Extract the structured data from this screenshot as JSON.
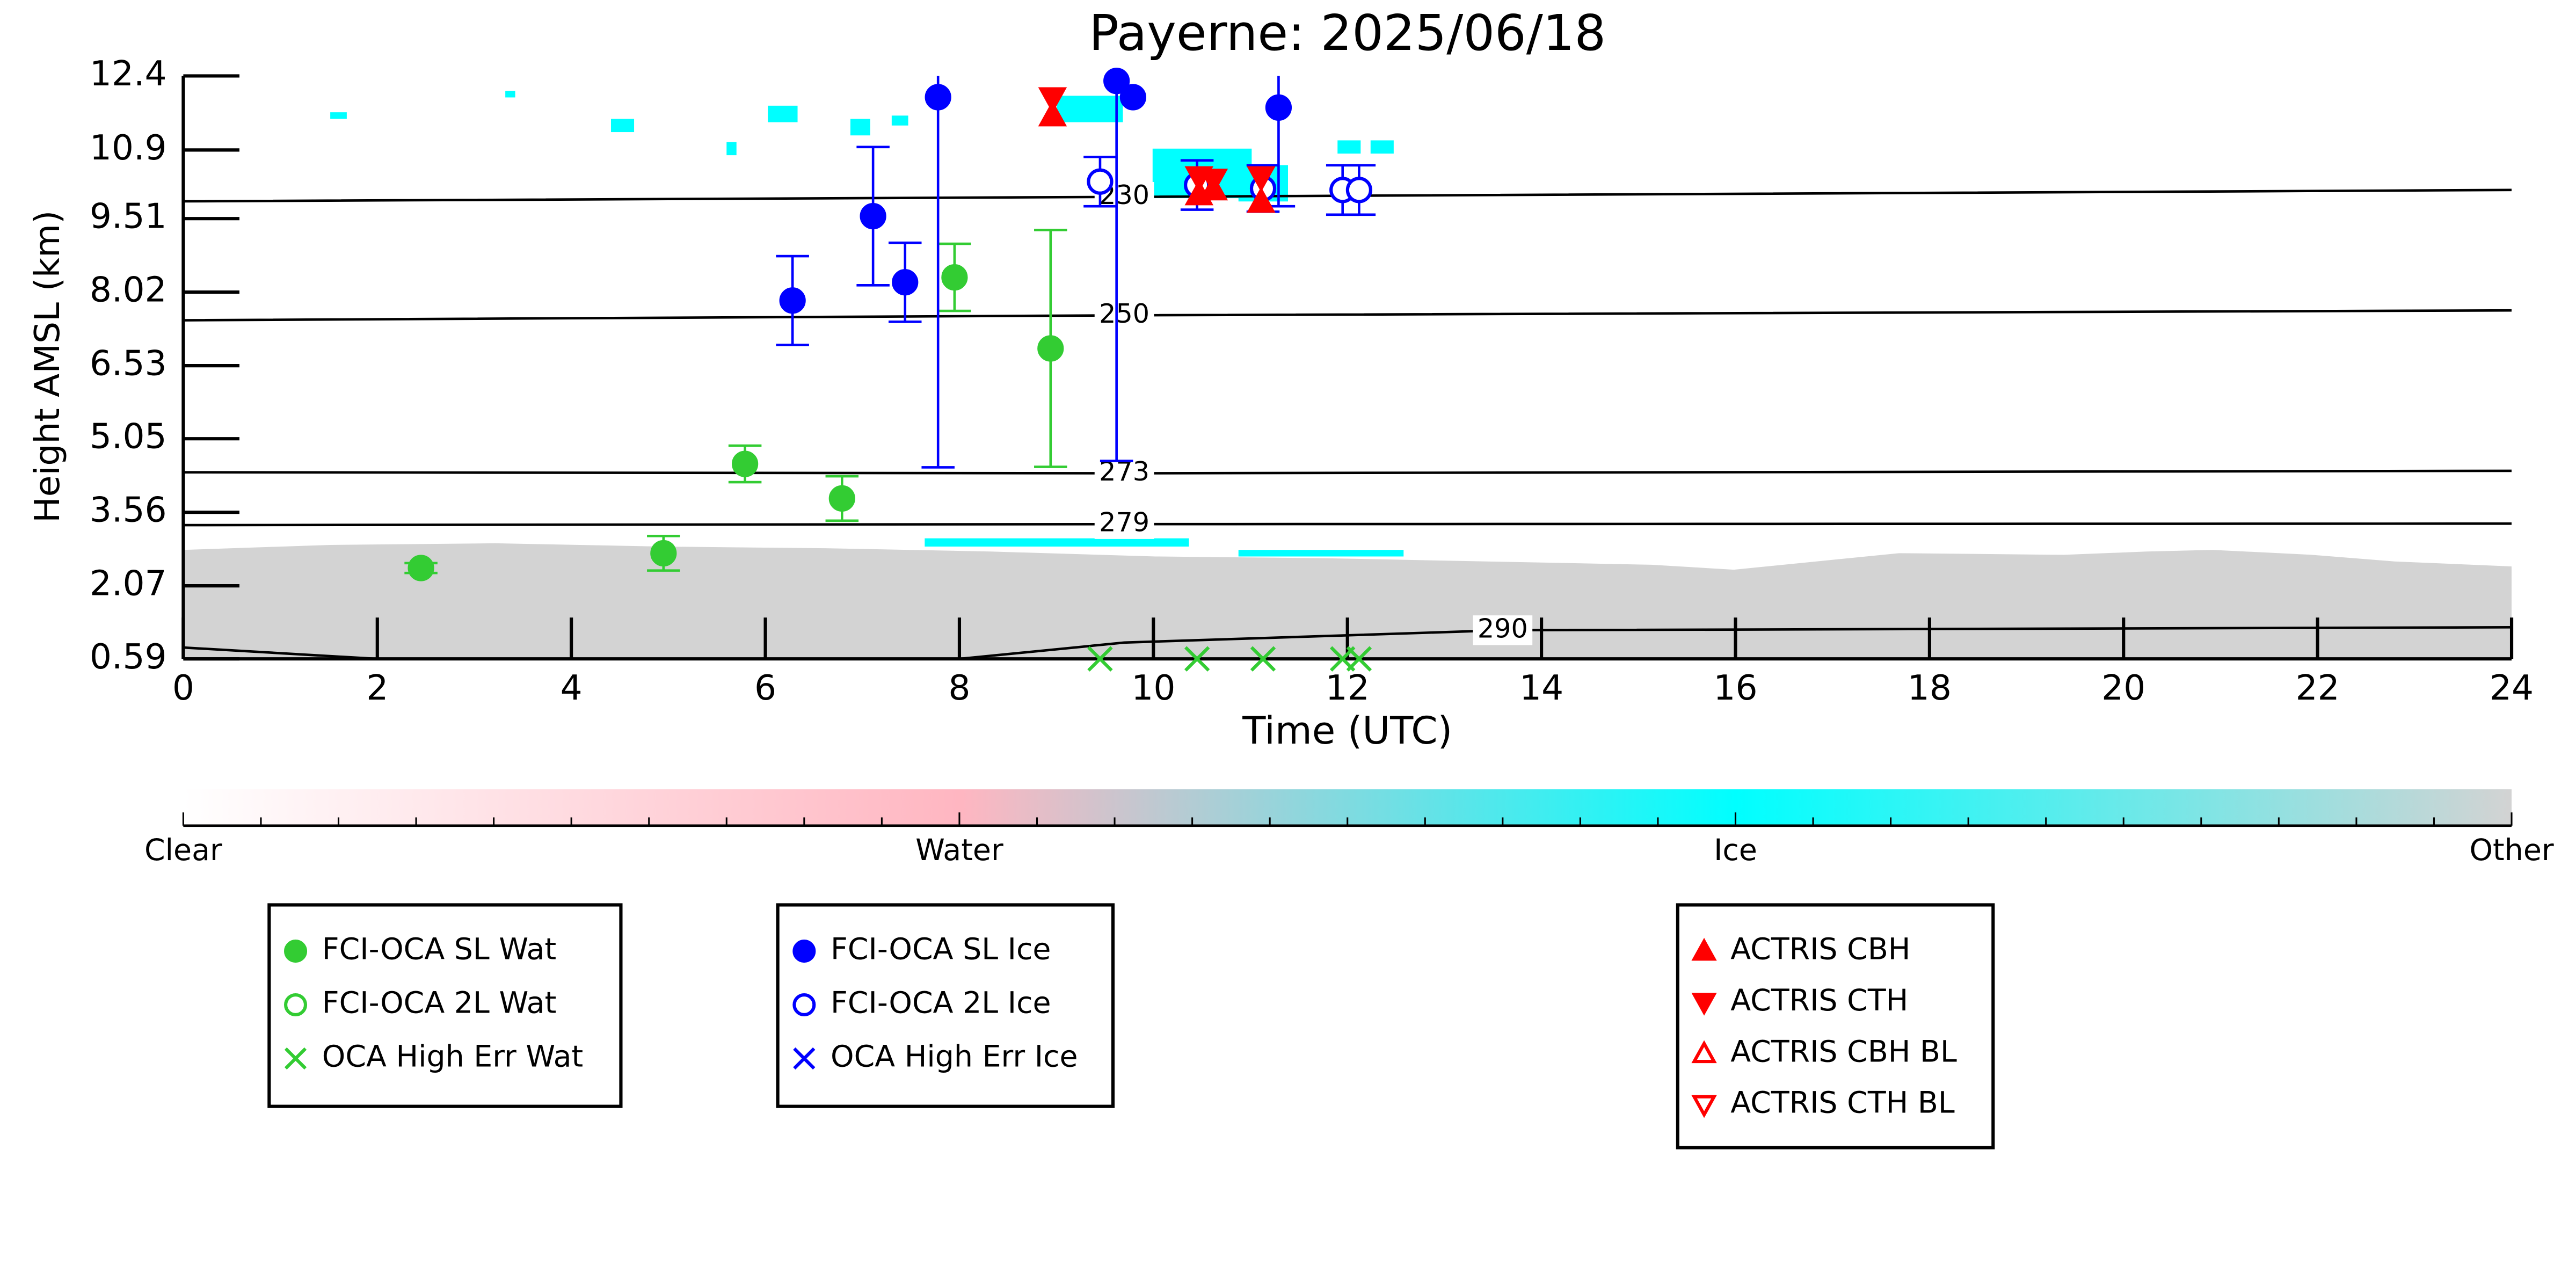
{
  "chart_data": {
    "type": "scatter",
    "title": "Payerne: 2025/06/18",
    "xlabel": "Time (UTC)",
    "ylabel": "Height AMSL (km)",
    "xlim": [
      0,
      24
    ],
    "xticks": [
      0,
      2,
      4,
      6,
      8,
      10,
      12,
      14,
      16,
      18,
      20,
      22,
      24
    ],
    "ylim": [
      0.59,
      12.4
    ],
    "yticks": [
      0.59,
      2.07,
      3.56,
      5.05,
      6.53,
      8.02,
      9.51,
      10.9,
      12.4
    ],
    "series": [
      {
        "name": "FCI-OCA SL Wat",
        "color": "#33cc33",
        "marker": "circle",
        "filled": true,
        "x": [
          2.45,
          4.95,
          5.79,
          6.79,
          7.95,
          8.94
        ],
        "values": [
          2.43,
          2.73,
          4.54,
          3.84,
          8.32,
          6.88
        ],
        "errors": [
          0.1,
          0.35,
          0.37,
          0.45,
          0.68,
          2.4
        ]
      },
      {
        "name": "FCI-OCA 2L Wat",
        "color": "#33cc33",
        "marker": "circle",
        "filled": false,
        "x": [],
        "values": []
      },
      {
        "name": "OCA High Err Wat",
        "color": "#33cc33",
        "marker": "x",
        "filled": true,
        "x": [
          9.45,
          10.45,
          11.13,
          11.95,
          12.12
        ],
        "values": [
          0.59,
          0.59,
          0.59,
          0.59,
          0.59
        ]
      },
      {
        "name": "FCI-OCA SL Ice",
        "color": "#0000ff",
        "marker": "circle",
        "filled": true,
        "x": [
          6.28,
          7.11,
          7.44,
          7.78,
          9.62,
          9.79,
          11.29
        ],
        "values": [
          7.85,
          9.56,
          8.22,
          11.97,
          12.3,
          11.97,
          11.76
        ],
        "errors": [
          0.9,
          1.4,
          0.8,
          7.5,
          7.7,
          null,
          2.0
        ]
      },
      {
        "name": "FCI-OCA 2L Ice",
        "color": "#0000ff",
        "marker": "circle",
        "filled": false,
        "x": [
          9.45,
          10.45,
          11.13,
          11.95,
          12.12
        ],
        "values": [
          10.26,
          10.19,
          10.12,
          10.09,
          10.09
        ],
        "errors": [
          0.5,
          0.5,
          0.47,
          0.5,
          0.5
        ]
      },
      {
        "name": "OCA High Err Ice",
        "color": "#0000ff",
        "marker": "x",
        "filled": true,
        "x": [],
        "values": []
      },
      {
        "name": "ACTRIS CBH",
        "color": "#ff0000",
        "marker": "triangle-up",
        "filled": true,
        "x": [
          8.96,
          10.47,
          10.62,
          11.11
        ],
        "values": [
          11.6,
          10.0,
          10.1,
          9.85
        ]
      },
      {
        "name": "ACTRIS CTH",
        "color": "#ff0000",
        "marker": "triangle-down",
        "filled": true,
        "x": [
          8.96,
          10.47,
          10.62,
          11.11
        ],
        "values": [
          11.95,
          10.35,
          10.3,
          10.35
        ]
      },
      {
        "name": "ACTRIS CBH BL",
        "color": "#ff0000",
        "marker": "triangle-up",
        "filled": false,
        "x": [],
        "values": []
      },
      {
        "name": "ACTRIS CTH BL",
        "color": "#ff0000",
        "marker": "triangle-down",
        "filled": false,
        "x": [],
        "values": []
      }
    ],
    "contours": [
      {
        "label": "230",
        "x": [
          0,
          9.7,
          24
        ],
        "values": [
          9.86,
          9.95,
          10.09
        ]
      },
      {
        "label": "250",
        "x": [
          0,
          9.7,
          24
        ],
        "values": [
          7.45,
          7.55,
          7.65
        ]
      },
      {
        "label": "273",
        "x": [
          0,
          9.7,
          24
        ],
        "values": [
          4.37,
          4.35,
          4.4
        ]
      },
      {
        "label": "279",
        "x": [
          0,
          9.7,
          24
        ],
        "values": [
          3.3,
          3.32,
          3.33
        ]
      },
      {
        "label": "290",
        "x": [
          0,
          2,
          8,
          9.7,
          13.6,
          24
        ],
        "values": [
          0.82,
          0.59,
          0.59,
          0.92,
          1.17,
          1.23
        ]
      }
    ],
    "colorbar": {
      "labels": [
        "Clear",
        "Water",
        "Ice",
        "Other"
      ],
      "colors": [
        "#ffffff",
        "#ffb6c1",
        "#00ffff",
        "#d3d3d3"
      ]
    }
  }
}
